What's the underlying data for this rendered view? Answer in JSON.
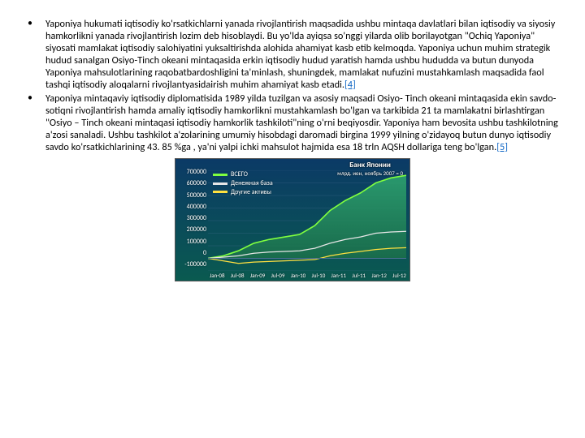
{
  "bullets": [
    {
      "text": "Yaponiya hukumati iqtisodiy ko'rsatkichlarni yanada rivojlantirish maqsadida ushbu mintaqa davlatlari bilan iqtisodiy va siyosiy hamkorlikni yanada rivojlantirish lozim deb hisoblaydi. Bu yo'lda ayiqsa so'nggi yilarda olib borilayotgan \"Ochiq Yaponiya\" siyosati mamlakat iqtisodiy salohiyatini yuksaltirishda alohida ahamiyat kasb etib kelmoqda. Yaponiya uchun muhim strategik hudud sanalgan Osiyo-Tinch okeani mintaqasida erkin iqtisodiy hudud yaratish hamda ushbu hududda va butun dunyoda Yaponiya mahsulotlarining raqobatbardoshligini ta'minlash, shuningdek, mamlakat nufuzini mustahkamlash maqsadida faol tashqi iqtisodiy aloqalarni rivojlantyasidairish muhim ahamiyat kasb etadi.",
      "ref": "[4]"
    },
    {
      "text": " Yaponiya mintaqaviy iqtisodiy diplomatisida 1989 yilda tuzilgan va asosiy maqsadi Osiyo- Tinch okeani mintaqasida ekin savdo-sotiqni rivojlantirish hamda amaliy iqtisodiy hamkorlikni mustahkamlash bo'lgan va tarkibida 21 ta mamlakatni birlashtirgan \"Osiyo – Tinch okeani mintaqasi iqtisodiy hamkorlik tashkiloti\"ning o'rni beqiyosdir. Yaponiya ham bevosita ushbu tashkilotning a'zosi sanaladi. Ushbu tashkilot a'zolarining umumiy hisobdagi daromadi birgina 1999 yilning o'zidayoq butun dunyo iqtisodiy savdo ko'rsatkichlarining 43. 85 %ga , ya'ni yalpi ichki mahsulot hajmida esa 18 trln AQSH dollariga teng bo'lgan.",
      "ref": "[5]"
    }
  ],
  "chart": {
    "type": "area",
    "header": "Банк Японии",
    "subheader": "млрд. иен, ноябрь 2007 = 0",
    "legend": [
      {
        "label": "ВСЕГО",
        "color": "#7fff3f"
      },
      {
        "label": "Денежная база",
        "color": "#e6e6e6"
      },
      {
        "label": "Другие активы",
        "color": "#ffe040"
      }
    ],
    "colors": {
      "bg_top": "#0b3a66",
      "bg_bottom": "#0a5a50",
      "grid": "#4a6f93",
      "line_total": "#7fff3f",
      "line_base": "#e6e6e6",
      "line_other": "#ffe040",
      "fill_total_top": "#2fa86f",
      "fill_total_bottom": "#1b6f4a",
      "axis_text": "#ffffff"
    },
    "y": {
      "ticks": [
        "700000",
        "600000",
        "500000",
        "400000",
        "300000",
        "200000",
        "100000",
        "0",
        "-100000"
      ],
      "min": -100000,
      "max": 700000
    },
    "x": {
      "labels": [
        "Jan-08",
        "Jul-08",
        "Jan-09",
        "Jul-09",
        "Jan-10",
        "Jul-10",
        "Jan-11",
        "Jul-11",
        "Jan-12",
        "Jul-12"
      ]
    },
    "series": {
      "total": [
        0,
        20000,
        60000,
        120000,
        150000,
        170000,
        190000,
        260000,
        380000,
        460000,
        520000,
        600000,
        640000,
        660000
      ],
      "base": [
        0,
        10000,
        20000,
        40000,
        50000,
        55000,
        60000,
        80000,
        120000,
        150000,
        170000,
        200000,
        210000,
        215000
      ],
      "other": [
        0,
        -20000,
        -40000,
        -30000,
        -25000,
        -20000,
        -15000,
        -10000,
        20000,
        40000,
        55000,
        70000,
        80000,
        85000
      ]
    }
  }
}
